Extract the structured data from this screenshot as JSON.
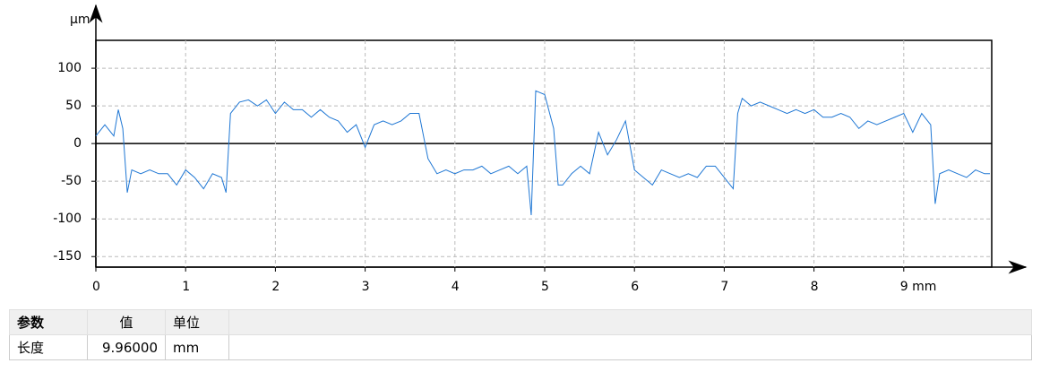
{
  "chart_data": {
    "type": "line",
    "y_label": "µm",
    "x": [
      0,
      0.1,
      0.2,
      0.25,
      0.3,
      0.35,
      0.4,
      0.5,
      0.6,
      0.7,
      0.8,
      0.9,
      1.0,
      1.1,
      1.2,
      1.3,
      1.4,
      1.45,
      1.5,
      1.6,
      1.7,
      1.8,
      1.9,
      2.0,
      2.1,
      2.2,
      2.3,
      2.4,
      2.5,
      2.6,
      2.7,
      2.8,
      2.9,
      3.0,
      3.1,
      3.2,
      3.3,
      3.4,
      3.5,
      3.6,
      3.7,
      3.8,
      3.9,
      4.0,
      4.1,
      4.2,
      4.3,
      4.4,
      4.5,
      4.6,
      4.7,
      4.8,
      4.85,
      4.9,
      5.0,
      5.1,
      5.15,
      5.2,
      5.3,
      5.4,
      5.5,
      5.6,
      5.7,
      5.8,
      5.9,
      6.0,
      6.1,
      6.2,
      6.3,
      6.4,
      6.5,
      6.6,
      6.7,
      6.8,
      6.9,
      7.0,
      7.1,
      7.15,
      7.2,
      7.3,
      7.4,
      7.5,
      7.6,
      7.7,
      7.8,
      7.9,
      8.0,
      8.1,
      8.2,
      8.3,
      8.4,
      8.5,
      8.6,
      8.7,
      8.8,
      8.9,
      9.0,
      9.1,
      9.2,
      9.3,
      9.35,
      9.4,
      9.5,
      9.6,
      9.7,
      9.8,
      9.9,
      9.96
    ],
    "series": [
      {
        "color": "#1f77d4",
        "values": [
          10,
          25,
          10,
          45,
          20,
          -65,
          -35,
          -40,
          -35,
          -40,
          -40,
          -55,
          -35,
          -45,
          -60,
          -40,
          -45,
          -65,
          40,
          55,
          58,
          50,
          58,
          40,
          55,
          45,
          45,
          35,
          45,
          35,
          30,
          15,
          25,
          -5,
          25,
          30,
          25,
          30,
          40,
          40,
          -20,
          -40,
          -35,
          -40,
          -35,
          -35,
          -30,
          -40,
          -35,
          -30,
          -40,
          -30,
          -95,
          70,
          65,
          20,
          -55,
          -55,
          -40,
          -30,
          -40,
          15,
          -15,
          5,
          30,
          -35,
          -45,
          -55,
          -35,
          -40,
          -45,
          -40,
          -45,
          -30,
          -30,
          -45,
          -60,
          40,
          60,
          50,
          55,
          50,
          45,
          40,
          45,
          40,
          45,
          35,
          35,
          40,
          35,
          20,
          30,
          25,
          30,
          35,
          40,
          15,
          40,
          25,
          -80,
          -40,
          -35,
          -40,
          -45,
          -35,
          -40,
          -40
        ]
      }
    ],
    "xlim": [
      0,
      9.98
    ],
    "ylim": [
      -164,
      137
    ],
    "xticks": [
      0,
      1,
      2,
      3,
      4,
      5,
      6,
      7,
      8,
      {
        "value": 9,
        "label": "9 mm"
      }
    ],
    "yticks": [
      -150,
      -100,
      -50,
      0,
      50,
      100
    ],
    "grid": true
  },
  "table": {
    "header": [
      "参数",
      "值",
      "单位"
    ],
    "rows": [
      [
        "长度",
        "9.96000",
        "mm"
      ]
    ]
  }
}
